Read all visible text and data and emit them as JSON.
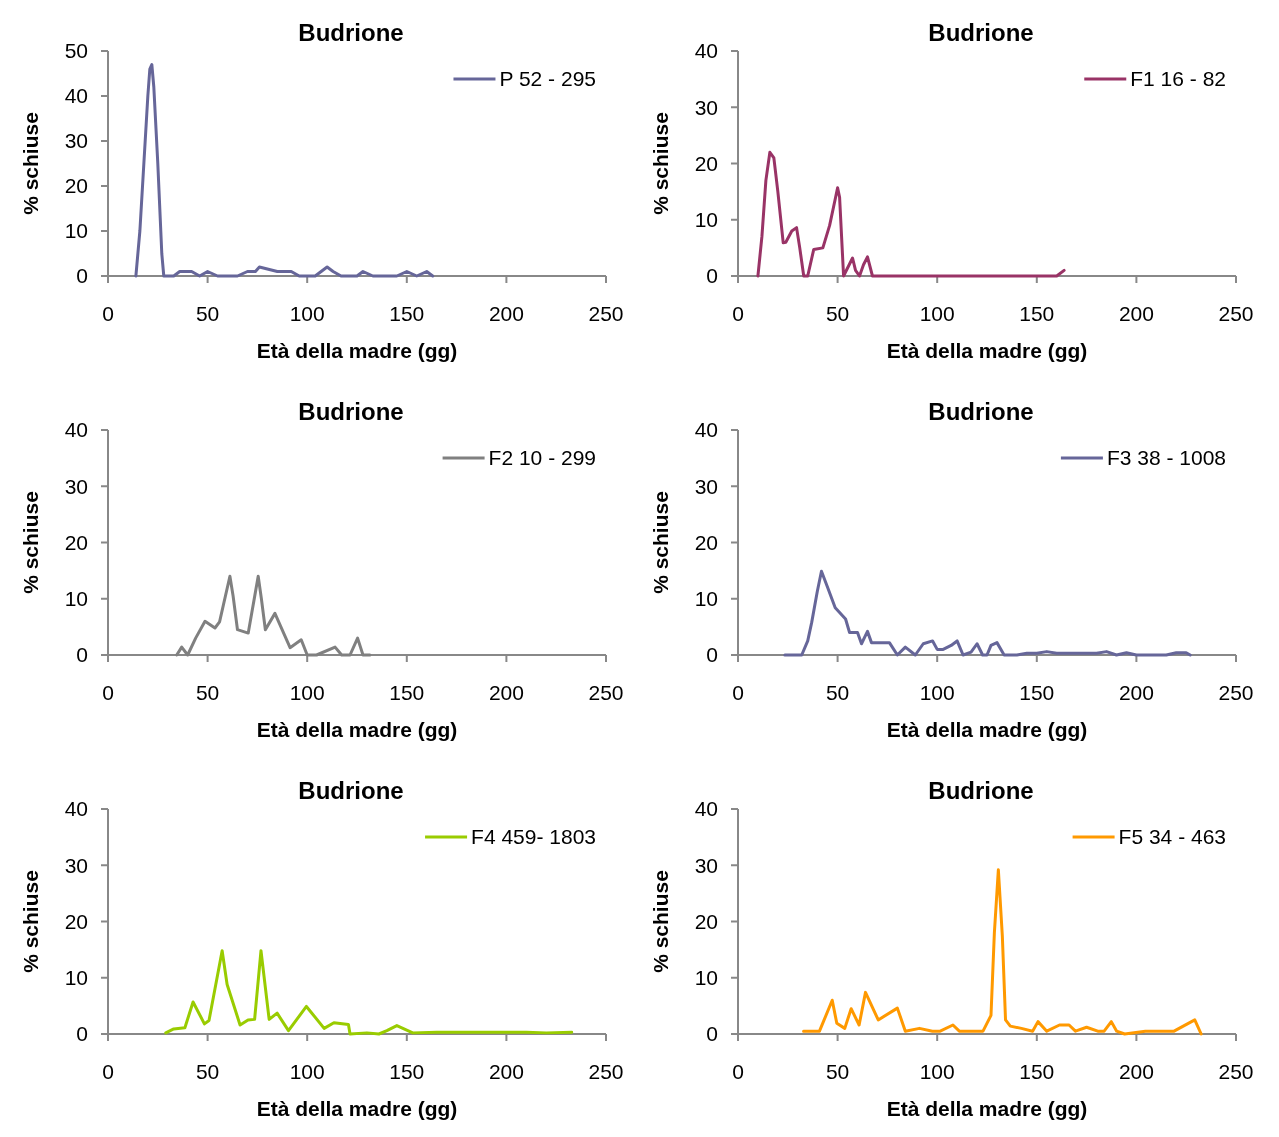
{
  "chart_data": [
    {
      "type": "line",
      "title": "Budrione",
      "xlabel": "Età della madre (gg)",
      "ylabel": "% schiuse",
      "xlim": [
        0,
        250
      ],
      "xticks": [
        0,
        50,
        100,
        150,
        200,
        250
      ],
      "ylim": [
        0,
        50
      ],
      "yticks": [
        0,
        10,
        20,
        30,
        40,
        50
      ],
      "legend": "top right",
      "grid": false,
      "line_style": "solid",
      "series": [
        {
          "name": "P 52 - 295",
          "color": "#666699",
          "x": [
            14,
            16,
            18,
            20,
            21,
            22,
            23,
            25,
            27,
            28,
            33,
            36,
            42,
            46,
            50,
            55,
            58,
            65,
            70,
            74,
            76,
            85,
            92,
            96,
            104,
            110,
            113,
            117,
            120,
            125,
            128,
            133,
            140,
            145,
            150,
            155,
            160,
            163
          ],
          "values": [
            0,
            10,
            25,
            40,
            46,
            47,
            42,
            25,
            5,
            0,
            0,
            1,
            1,
            0,
            1,
            0,
            0,
            0,
            1,
            1,
            2,
            1,
            1,
            0,
            0,
            2,
            1,
            0,
            0,
            0,
            1,
            0,
            0,
            0,
            1,
            0,
            1,
            0
          ]
        }
      ]
    },
    {
      "type": "line",
      "title": "Budrione",
      "xlabel": "Età della madre (gg)",
      "ylabel": "% schiuse",
      "xlim": [
        0,
        250
      ],
      "xticks": [
        0,
        50,
        100,
        150,
        200,
        250
      ],
      "ylim": [
        0,
        40
      ],
      "yticks": [
        0,
        10,
        20,
        30,
        40
      ],
      "legend": "top right",
      "grid": false,
      "line_style": "solid",
      "series": [
        {
          "name": "F1 16 - 82",
          "color": "#993366",
          "x": [
            10,
            12,
            14,
            16,
            18,
            20,
            22.7,
            24,
            27,
            29.4,
            31,
            33,
            35,
            38,
            42.6,
            46,
            49,
            50,
            51,
            53,
            57.5,
            59,
            61,
            63,
            65,
            67.5,
            160,
            163.7
          ],
          "values": [
            0,
            7,
            17,
            22,
            21,
            15,
            5.9,
            6,
            8,
            8.6,
            5,
            0,
            0,
            4.7,
            5,
            9,
            14,
            15.7,
            14,
            0,
            3.2,
            1,
            0,
            2,
            3.4,
            0,
            0,
            1
          ]
        }
      ]
    },
    {
      "type": "line",
      "title": "Budrione",
      "xlabel": "Età della madre (gg)",
      "ylabel": "% schiuse",
      "xlim": [
        0,
        250
      ],
      "xticks": [
        0,
        50,
        100,
        150,
        200,
        250
      ],
      "ylim": [
        0,
        40
      ],
      "yticks": [
        0,
        10,
        20,
        30,
        40
      ],
      "legend": "top right",
      "grid": false,
      "line_style": "solid",
      "series": [
        {
          "name": "F2 10 - 299",
          "color": "#808080",
          "x": [
            34.5,
            37,
            40,
            44,
            48.7,
            53.7,
            56,
            61.2,
            62.8,
            65,
            70.4,
            75.4,
            77,
            79,
            83.8,
            91.4,
            97,
            100,
            104.7,
            114,
            117.3,
            121.5,
            125.3,
            128,
            131.5
          ],
          "values": [
            0,
            1.4,
            0,
            3,
            6,
            4.8,
            5.9,
            14,
            10.5,
            4.5,
            3.9,
            14,
            10,
            4.5,
            7.4,
            1.3,
            2.7,
            0,
            0,
            1.4,
            0,
            0,
            3,
            0,
            0
          ]
        }
      ]
    },
    {
      "type": "line",
      "title": "Budrione",
      "xlabel": "Età della madre (gg)",
      "ylabel": "% schiuse",
      "xlim": [
        0,
        250
      ],
      "xticks": [
        0,
        50,
        100,
        150,
        200,
        250
      ],
      "ylim": [
        0,
        40
      ],
      "yticks": [
        0,
        10,
        20,
        30,
        40
      ],
      "legend": "top right",
      "grid": false,
      "line_style": "solid",
      "series": [
        {
          "name": "F3 38 - 1008",
          "color": "#666699",
          "x": [
            23.5,
            32,
            35,
            37,
            39.8,
            41.9,
            45,
            48.8,
            54,
            56,
            60,
            62,
            65,
            67,
            76,
            80,
            84,
            89,
            93,
            97.7,
            100,
            103,
            107,
            110,
            113,
            117,
            120,
            122.8,
            125,
            127,
            130,
            133.6,
            140,
            145,
            150,
            155,
            160,
            170,
            180,
            185,
            190,
            195,
            200,
            207,
            215,
            220,
            225,
            227
          ],
          "values": [
            0,
            0,
            2.5,
            5.8,
            11.3,
            14.9,
            12,
            8.4,
            6.4,
            4,
            4,
            2,
            4.2,
            2.2,
            2.2,
            0,
            1.4,
            0,
            2,
            2.5,
            1,
            1,
            1.7,
            2.5,
            0,
            0.5,
            2,
            0,
            0,
            1.7,
            2.2,
            0,
            0,
            0.3,
            0.3,
            0.6,
            0.3,
            0.3,
            0.3,
            0.6,
            0,
            0.4,
            0,
            0,
            0,
            0.4,
            0.4,
            0
          ]
        }
      ]
    },
    {
      "type": "line",
      "title": "Budrione",
      "xlabel": "Età della madre (gg)",
      "ylabel": "% schiuse",
      "xlim": [
        0,
        250
      ],
      "xticks": [
        0,
        50,
        100,
        150,
        200,
        250
      ],
      "ylim": [
        0,
        40
      ],
      "yticks": [
        0,
        10,
        20,
        30,
        40
      ],
      "legend": "top right",
      "grid": false,
      "line_style": "solid",
      "series": [
        {
          "name": "F4 459- 1803",
          "color": "#99cc00",
          "x": [
            29,
            33,
            38.6,
            42.7,
            48.4,
            50.7,
            57.3,
            59.8,
            66.3,
            70.3,
            73.6,
            76.8,
            80.9,
            84.9,
            90.6,
            99.6,
            108.5,
            113.4,
            120.7,
            121.5,
            130,
            136,
            140,
            145,
            153,
            165,
            180,
            195,
            210,
            220,
            232.8
          ],
          "values": [
            0.2,
            0.9,
            1.1,
            5.7,
            1.8,
            2.4,
            14.8,
            8.8,
            1.6,
            2.5,
            2.6,
            14.8,
            2.6,
            3.7,
            0.6,
            4.9,
            1,
            2,
            1.7,
            0,
            0.2,
            0,
            0.6,
            1.5,
            0.2,
            0.3,
            0.3,
            0.3,
            0.3,
            0.2,
            0.3
          ]
        }
      ]
    },
    {
      "type": "line",
      "title": "Budrione",
      "xlabel": "Età della madre (gg)",
      "ylabel": "% schiuse",
      "xlim": [
        0,
        250
      ],
      "xticks": [
        0,
        50,
        100,
        150,
        200,
        250
      ],
      "ylim": [
        0,
        40
      ],
      "yticks": [
        0,
        10,
        20,
        30,
        40
      ],
      "legend": "top right",
      "grid": false,
      "line_style": "solid",
      "series": [
        {
          "name": "F5 34 - 463",
          "color": "#ff9900",
          "x": [
            32.9,
            40.9,
            47.3,
            49.6,
            53.6,
            56.8,
            60.8,
            64,
            70.4,
            80,
            84,
            91.1,
            97.6,
            101.5,
            107.9,
            111.1,
            123,
            127,
            128.7,
            130.7,
            132.7,
            134.3,
            136.7,
            142.3,
            147.9,
            150.6,
            155,
            161.4,
            166.2,
            169.4,
            175,
            180.6,
            183.8,
            187.4,
            190.1,
            194.1,
            204.5,
            211.7,
            218.9,
            229.3,
            232.5
          ],
          "values": [
            0.5,
            0.5,
            6,
            1.9,
            1,
            4.5,
            1.6,
            7.4,
            2.5,
            4.6,
            0.5,
            1,
            0.5,
            0.5,
            1.6,
            0.5,
            0.5,
            3.3,
            18,
            29.2,
            17.4,
            2.5,
            1.4,
            1,
            0.5,
            2.2,
            0.5,
            1.6,
            1.6,
            0.5,
            1.2,
            0.5,
            0.5,
            2.2,
            0.5,
            0,
            0.5,
            0.5,
            0.5,
            2.5,
            0
          ]
        }
      ]
    }
  ]
}
